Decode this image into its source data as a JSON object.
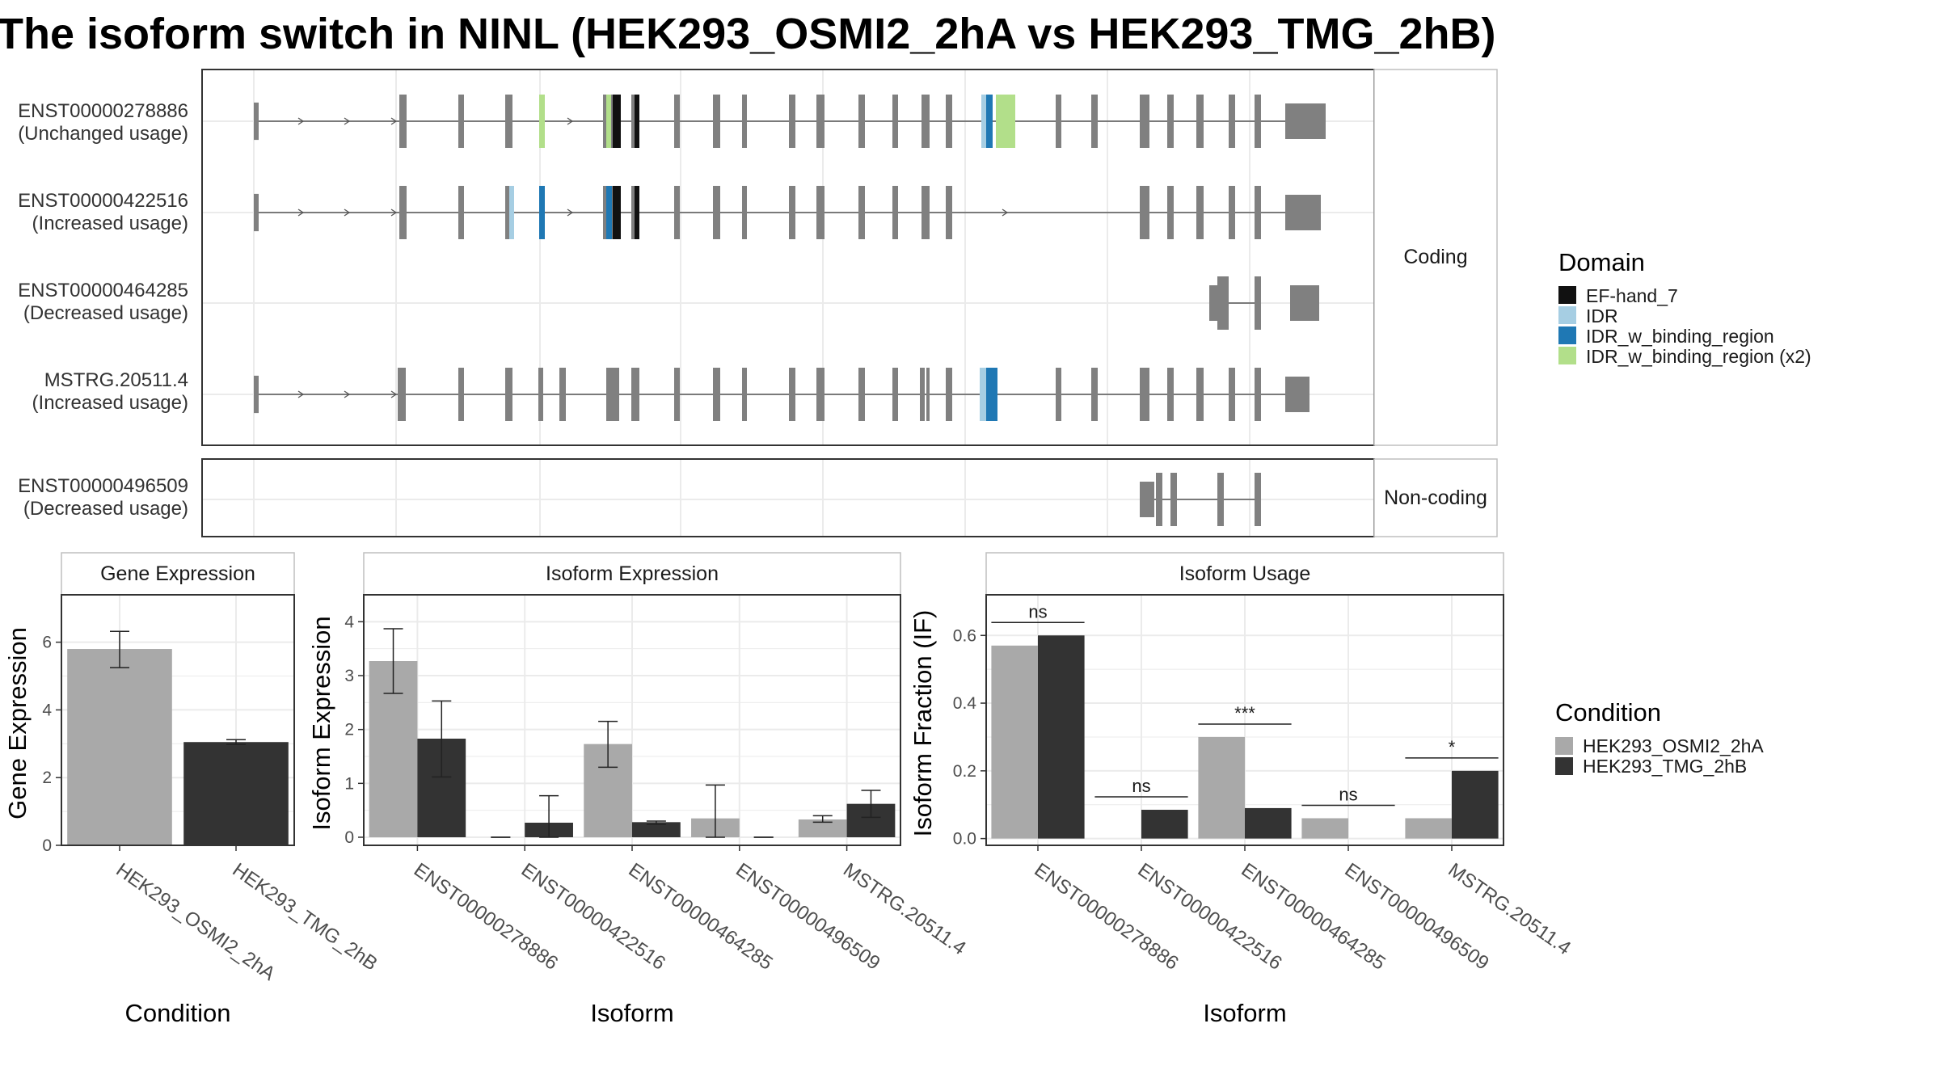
{
  "title": "The isoform switch in NINL (HEK293_OSMI2_2hA vs HEK293_TMG_2hB)",
  "colors": {
    "exon": "#808080",
    "cond_a": "#a9a9a9",
    "cond_b": "#333333",
    "panel_border": "#333333",
    "strip_border": "#bfbfbf",
    "grid": "#ebebeb",
    "domain_ef_hand_7": "#111111",
    "domain_idr": "#a6cee3",
    "domain_idr_binding": "#1f78b4",
    "domain_idr_binding_x2": "#b2df8a"
  },
  "isoforms": [
    {
      "id": "ENST00000278886",
      "usage": "(Unchanged usage)"
    },
    {
      "id": "ENST00000422516",
      "usage": "(Increased usage)"
    },
    {
      "id": "ENST00000464285",
      "usage": "(Decreased usage)"
    },
    {
      "id": "MSTRG.20511.4",
      "usage": "(Increased usage)"
    },
    {
      "id": "ENST00000496509",
      "usage": "(Decreased usage)"
    }
  ],
  "strips": {
    "coding": "Coding",
    "noncoding": "Non-coding"
  },
  "domain_legend": {
    "title": "Domain",
    "items": [
      {
        "label": "EF-hand_7",
        "color": "#111111"
      },
      {
        "label": "IDR",
        "color": "#a6cee3"
      },
      {
        "label": "IDR_w_binding_region",
        "color": "#1f78b4"
      },
      {
        "label": "IDR_w_binding_region (x2)",
        "color": "#b2df8a"
      }
    ]
  },
  "condition_legend": {
    "title": "Condition",
    "items": [
      {
        "label": "HEK293_OSMI2_2hA",
        "color": "#a9a9a9"
      },
      {
        "label": "HEK293_TMG_2hB",
        "color": "#333333"
      }
    ]
  },
  "chart_data": [
    {
      "type": "bar",
      "panel": "Gene Expression",
      "xlabel": "Condition",
      "ylabel": "Gene Expression",
      "ylim": [
        0,
        7.4
      ],
      "yticks": [
        0,
        2,
        4,
        6
      ],
      "categories": [
        "HEK293_OSMI2_2hA",
        "HEK293_TMG_2hB"
      ],
      "values": [
        5.8,
        3.05
      ],
      "error_low": [
        5.25,
        2.98
      ],
      "error_high": [
        6.32,
        3.12
      ]
    },
    {
      "type": "bar",
      "panel": "Isoform Expression",
      "xlabel": "Isoform",
      "ylabel": "Isoform Expression",
      "ylim": [
        -0.15,
        4.5
      ],
      "yticks": [
        0,
        1,
        2,
        3,
        4
      ],
      "categories": [
        "ENST00000278886",
        "ENST00000422516",
        "ENST00000464285",
        "ENST00000496509",
        "MSTRG.20511.4"
      ],
      "series": [
        {
          "name": "HEK293_OSMI2_2hA",
          "values": [
            3.27,
            0.0,
            1.73,
            0.35,
            0.33
          ],
          "error_low": [
            2.67,
            0.0,
            1.3,
            0.0,
            0.28
          ],
          "error_high": [
            3.87,
            0.0,
            2.15,
            0.97,
            0.4
          ]
        },
        {
          "name": "HEK293_TMG_2hB",
          "values": [
            1.83,
            0.27,
            0.28,
            0.0,
            0.62
          ],
          "error_low": [
            1.12,
            0.0,
            0.24,
            0.0,
            0.37
          ],
          "error_high": [
            2.53,
            0.77,
            0.3,
            0.0,
            0.87
          ]
        }
      ]
    },
    {
      "type": "bar",
      "panel": "Isoform Usage",
      "xlabel": "Isoform",
      "ylabel": "Isoform Fraction (IF)",
      "ylim": [
        -0.02,
        0.72
      ],
      "yticks": [
        "0.0",
        "0.2",
        "0.4",
        "0.6"
      ],
      "categories": [
        "ENST00000278886",
        "ENST00000422516",
        "ENST00000464285",
        "ENST00000496509",
        "MSTRG.20511.4"
      ],
      "series": [
        {
          "name": "HEK293_OSMI2_2hA",
          "values": [
            0.57,
            0.0,
            0.3,
            0.06,
            0.06
          ]
        },
        {
          "name": "HEK293_TMG_2hB",
          "values": [
            0.6,
            0.085,
            0.09,
            0.0,
            0.2
          ]
        }
      ],
      "significance": [
        "ns",
        "ns",
        "***",
        "ns",
        "*"
      ]
    }
  ]
}
